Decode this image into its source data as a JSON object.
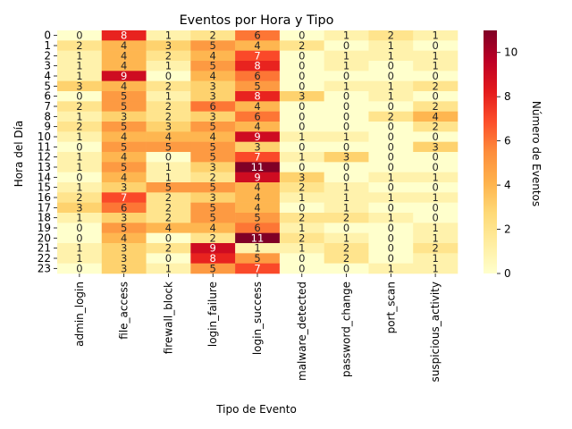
{
  "chart_data": {
    "type": "heatmap",
    "title": "Eventos por Hora y Tipo",
    "xlabel": "Tipo de Evento",
    "ylabel": "Hora del Día",
    "colorbar_label": "Número de Eventos",
    "colorbar_ticks": [
      0,
      2,
      4,
      6,
      8,
      10
    ],
    "vmin": 0,
    "vmax": 11,
    "colormap": "YlOrRd",
    "x_categories": [
      "admin_login",
      "file_access",
      "firewall_block",
      "login_failure",
      "login_success",
      "malware_detected",
      "password_change",
      "port_scan",
      "suspicious_activity"
    ],
    "y_categories": [
      "0",
      "1",
      "2",
      "3",
      "4",
      "5",
      "6",
      "7",
      "8",
      "9",
      "10",
      "11",
      "12",
      "13",
      "14",
      "15",
      "16",
      "17",
      "18",
      "19",
      "20",
      "21",
      "22",
      "23"
    ],
    "values": [
      [
        0,
        8,
        1,
        2,
        6,
        0,
        1,
        2,
        1
      ],
      [
        2,
        4,
        3,
        5,
        4,
        2,
        0,
        1,
        0
      ],
      [
        1,
        4,
        2,
        4,
        7,
        0,
        1,
        1,
        1
      ],
      [
        1,
        4,
        1,
        5,
        8,
        0,
        1,
        0,
        1
      ],
      [
        1,
        9,
        0,
        4,
        6,
        0,
        0,
        0,
        0
      ],
      [
        3,
        4,
        2,
        3,
        5,
        0,
        1,
        1,
        2
      ],
      [
        0,
        5,
        1,
        3,
        8,
        3,
        0,
        1,
        0
      ],
      [
        2,
        5,
        2,
        6,
        4,
        0,
        0,
        0,
        2
      ],
      [
        1,
        3,
        2,
        3,
        6,
        0,
        0,
        2,
        4
      ],
      [
        2,
        5,
        3,
        5,
        4,
        0,
        0,
        0,
        2
      ],
      [
        1,
        4,
        4,
        4,
        9,
        1,
        1,
        0,
        0
      ],
      [
        0,
        5,
        5,
        5,
        3,
        0,
        0,
        0,
        3
      ],
      [
        1,
        4,
        0,
        5,
        7,
        1,
        3,
        0,
        0
      ],
      [
        1,
        5,
        1,
        3,
        11,
        0,
        0,
        0,
        0
      ],
      [
        0,
        4,
        1,
        2,
        9,
        3,
        0,
        1,
        1
      ],
      [
        1,
        3,
        5,
        5,
        4,
        2,
        1,
        0,
        0
      ],
      [
        2,
        7,
        2,
        3,
        4,
        1,
        1,
        1,
        1
      ],
      [
        3,
        6,
        2,
        5,
        4,
        0,
        1,
        0,
        0
      ],
      [
        1,
        3,
        2,
        5,
        5,
        2,
        2,
        1,
        0
      ],
      [
        0,
        5,
        4,
        4,
        6,
        1,
        0,
        0,
        1
      ],
      [
        0,
        4,
        0,
        2,
        11,
        2,
        1,
        0,
        1
      ],
      [
        1,
        3,
        2,
        9,
        1,
        1,
        2,
        0,
        2
      ],
      [
        1,
        3,
        0,
        8,
        5,
        0,
        2,
        0,
        1
      ],
      [
        0,
        3,
        1,
        5,
        7,
        0,
        0,
        1,
        1
      ]
    ]
  }
}
